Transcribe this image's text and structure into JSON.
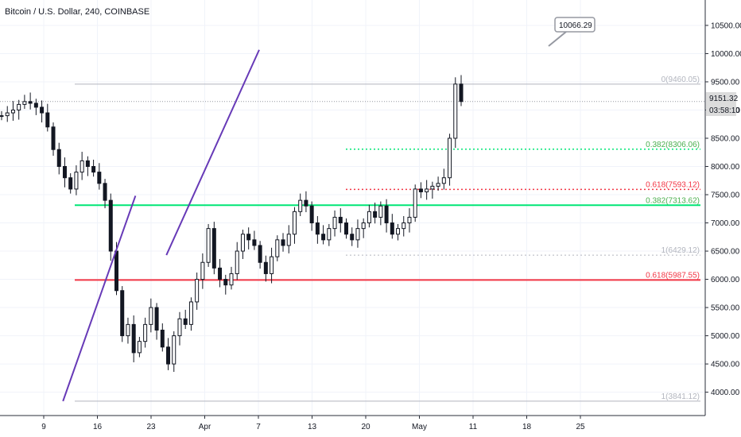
{
  "header": {
    "title": "Bitcoin / U.S. Dollar, 240, COINBASE"
  },
  "price_label": {
    "price": "9151.32",
    "countdown": "03:58:10"
  },
  "annotation": {
    "value": "10066.29"
  },
  "chart_data": {
    "type": "line",
    "title": "Bitcoin / U.S. Dollar, 240, COINBASE",
    "ylim": [
      3600,
      10950
    ],
    "y_ticks": [
      "4000.00",
      "4500.00",
      "5000.00",
      "5500.00",
      "6000.00",
      "6500.00",
      "7000.00",
      "7500.00",
      "8000.00",
      "8500.00",
      "9000.00",
      "9500.00",
      "10000.00",
      "10500.00"
    ],
    "x_ticks": [
      "9",
      "16",
      "23",
      "Apr",
      "7",
      "13",
      "20",
      "May",
      "11",
      "18",
      "25"
    ],
    "grid": true,
    "series": [
      {
        "values": [
          8900,
          8950,
          9000,
          9100,
          9150,
          9120,
          9050,
          8950,
          8700,
          8300,
          8000,
          7800,
          7600,
          7900,
          8100,
          8000,
          7900,
          7700,
          7400,
          6500,
          5800,
          5000,
          5200,
          4700,
          4900,
          5200,
          5500,
          5100,
          4800,
          4500,
          5000,
          5300,
          5200,
          5600,
          6000,
          6300,
          6900,
          6200,
          6000,
          5900,
          6100,
          6500,
          6800,
          6700,
          6600,
          6300,
          6100,
          6400,
          6700,
          6600,
          6800,
          7200,
          7400,
          7300,
          7000,
          6800,
          6700,
          6900,
          7100,
          7000,
          6800,
          6700,
          6900,
          7000,
          7200,
          7100,
          7300,
          7000,
          6800,
          6900,
          7000,
          7100,
          7600,
          7550,
          7600,
          7650,
          7700,
          7800,
          8500,
          9460,
          9151
        ]
      }
    ],
    "fib_levels": [
      {
        "label": "0(9460.05)",
        "value": 9460.05,
        "color": "#b2b5be"
      },
      {
        "label": "0.382(8306.06)",
        "value": 8306.06,
        "color": "#4caf50"
      },
      {
        "label": "0.618(7593.12)",
        "value": 7593.12,
        "color": "#f23645"
      },
      {
        "label": "0.382(7313.62)",
        "value": 7313.62,
        "color": "#4caf50"
      },
      {
        "label": "1(6429.12)",
        "value": 6429.12,
        "color": "#b2b5be"
      },
      {
        "label": "0.618(5987.55)",
        "value": 5987.55,
        "color": "#f23645"
      },
      {
        "label": "1(3841.12)",
        "value": 3841.12,
        "color": "#b2b5be"
      }
    ],
    "trendlines": [
      {
        "from": [
          1,
          3841.12
        ],
        "to": [
          15,
          7480
        ]
      },
      {
        "from": [
          19,
          6429.12
        ],
        "to": [
          31,
          10066.29
        ]
      }
    ],
    "colors": {
      "candle": "#131722",
      "trendline": "#673ab7",
      "green": "#00e676",
      "red": "#f23645"
    }
  }
}
